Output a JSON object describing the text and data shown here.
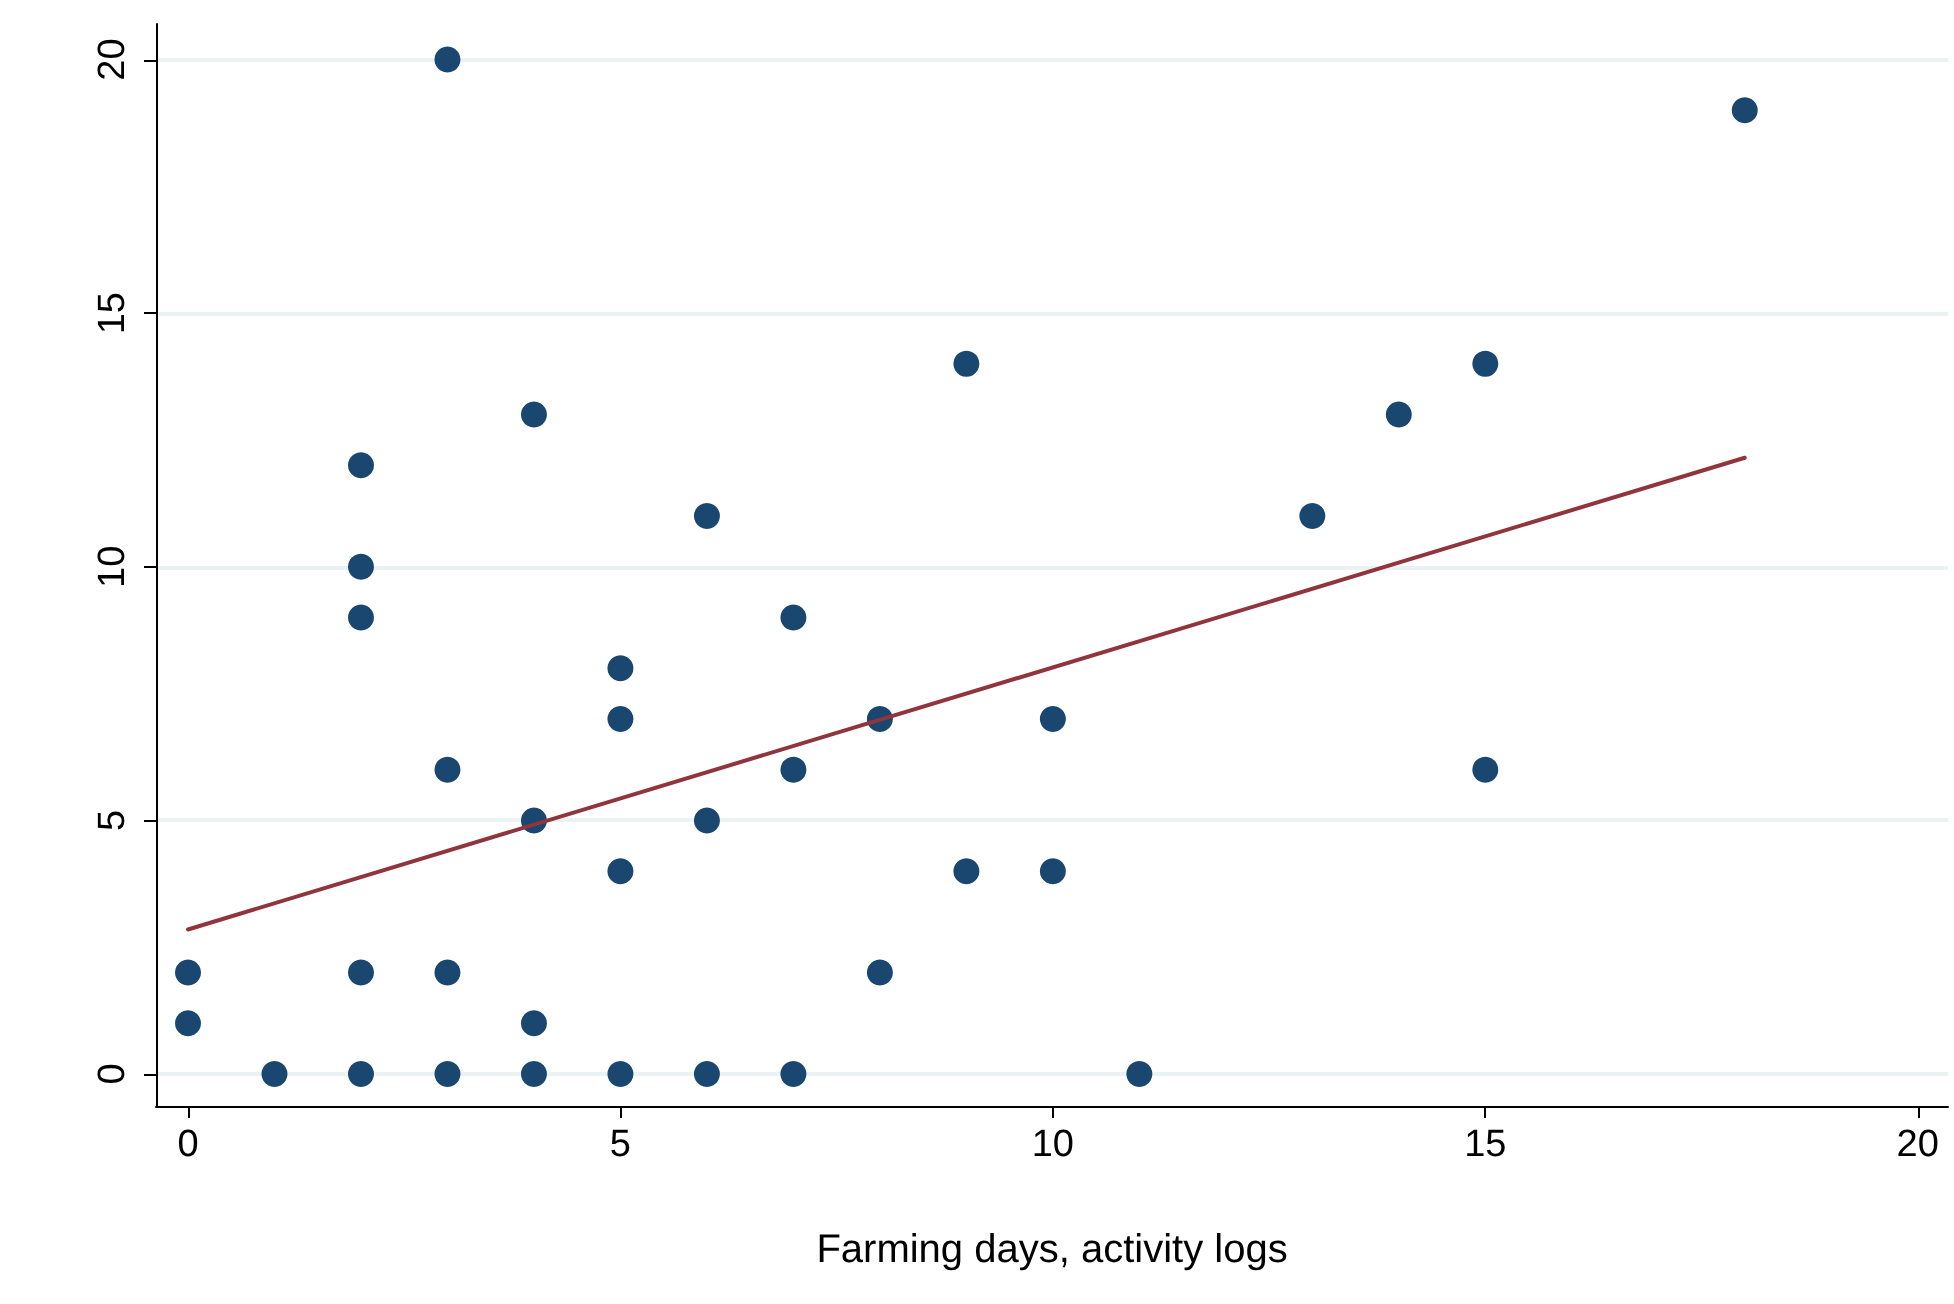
{
  "chart_data": {
    "type": "scatter",
    "xlabel": "Farming days, activity logs",
    "xlim": [
      -0.37,
      20.35
    ],
    "ylim": [
      -0.63,
      20.7
    ],
    "xticks": [
      0,
      5,
      10,
      15,
      20
    ],
    "yticks": [
      0,
      5,
      10,
      15,
      20
    ],
    "grid": "y",
    "marker": "circle",
    "series": [
      {
        "color": "#1a476f",
        "x": [
          0,
          0,
          1,
          2,
          2,
          2,
          2,
          2,
          3,
          3,
          3,
          3,
          4,
          4,
          4,
          4,
          5,
          5,
          5,
          5,
          6,
          6,
          6,
          7,
          7,
          7,
          8,
          8,
          9,
          9,
          10,
          10,
          11,
          13,
          14,
          15,
          15,
          18
        ],
        "values": [
          2,
          1,
          0,
          12,
          10,
          9,
          2,
          0,
          20,
          6,
          2,
          0,
          13,
          5,
          1,
          0,
          8,
          7,
          4,
          0,
          11,
          5,
          0,
          9,
          6,
          0,
          7,
          2,
          14,
          4,
          7,
          4,
          0,
          11,
          13,
          14,
          6,
          19
        ]
      },
      {
        "type": "line",
        "color": "#90353b",
        "marker": "none",
        "line_style": "solid",
        "x": [
          0,
          18
        ],
        "values": [
          2.85,
          12.15
        ]
      }
    ]
  }
}
